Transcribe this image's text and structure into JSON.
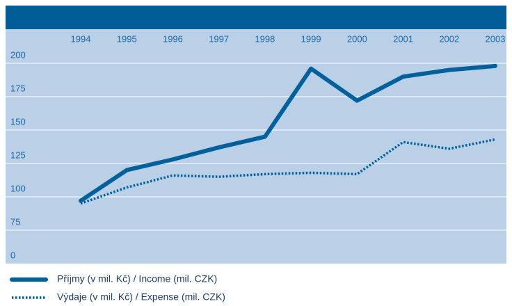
{
  "chart_data": {
    "type": "line",
    "categories": [
      "1994",
      "1995",
      "1996",
      "1997",
      "1998",
      "1999",
      "2000",
      "2001",
      "2002",
      "2003"
    ],
    "series": [
      {
        "name": "Příjmy (v mil. Kč) / Income (mil. CZK)",
        "color": "#00609c",
        "style": "solid",
        "values": [
          97,
          120,
          128,
          137,
          145,
          196,
          172,
          190,
          195,
          198
        ]
      },
      {
        "name": "Výdaje (v mil. Kč) / Expense (mil. CZK)",
        "color": "#00609c",
        "style": "dotted",
        "values": [
          95,
          107,
          116,
          115,
          117,
          118,
          117,
          141,
          136,
          143
        ]
      }
    ],
    "ylim": [
      0,
      200
    ],
    "yticks": [
      0,
      75,
      100,
      125,
      150,
      175,
      200
    ],
    "grid": true
  }
}
